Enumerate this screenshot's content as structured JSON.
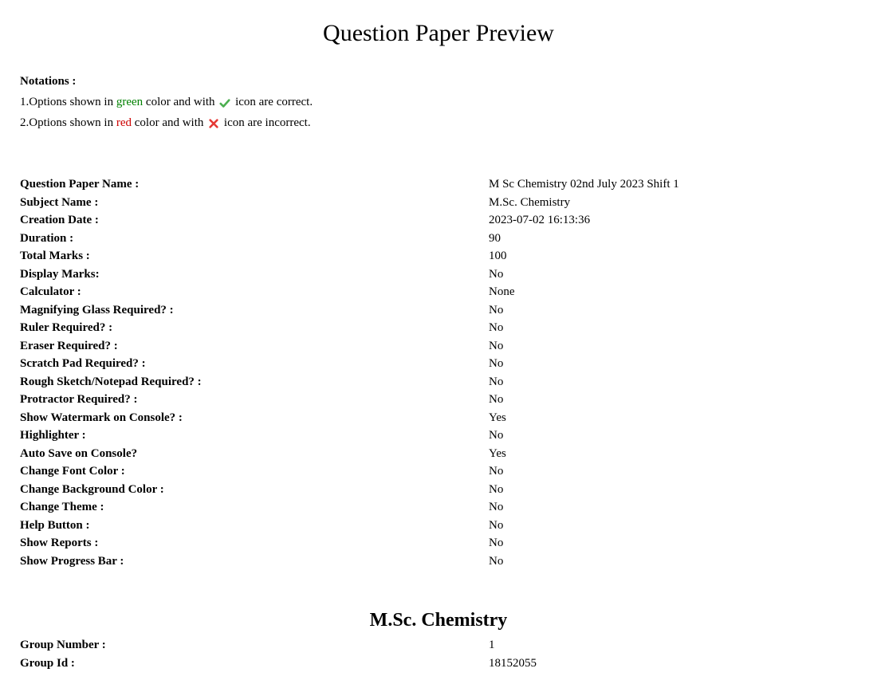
{
  "title": "Question Paper Preview",
  "notations": {
    "heading": "Notations :",
    "item1_prefix": "1.Options shown in ",
    "item1_green": "green",
    "item1_mid": " color and with ",
    "item1_suffix": " icon are correct.",
    "item2_prefix": "2.Options shown in ",
    "item2_red": "red",
    "item2_mid": " color and with ",
    "item2_suffix": " icon are incorrect."
  },
  "details": [
    {
      "label": "Question Paper Name :",
      "value": "M Sc Chemistry 02nd July 2023 Shift 1"
    },
    {
      "label": "Subject Name :",
      "value": "M.Sc. Chemistry"
    },
    {
      "label": "Creation Date :",
      "value": "2023-07-02 16:13:36"
    },
    {
      "label": "Duration :",
      "value": "90"
    },
    {
      "label": "Total Marks :",
      "value": "100"
    },
    {
      "label": "Display Marks:",
      "value": "No"
    },
    {
      "label": "Calculator :",
      "value": "None"
    },
    {
      "label": "Magnifying Glass Required? :",
      "value": "No"
    },
    {
      "label": "Ruler Required? :",
      "value": "No"
    },
    {
      "label": "Eraser Required? :",
      "value": "No"
    },
    {
      "label": "Scratch Pad Required? :",
      "value": "No"
    },
    {
      "label": "Rough Sketch/Notepad Required? :",
      "value": "No"
    },
    {
      "label": "Protractor Required? :",
      "value": "No"
    },
    {
      "label": "Show Watermark on Console? :",
      "value": "Yes"
    },
    {
      "label": "Highlighter :",
      "value": "No"
    },
    {
      "label": "Auto Save on Console?",
      "value": "Yes"
    },
    {
      "label": "Change Font Color :",
      "value": "No"
    },
    {
      "label": "Change Background Color :",
      "value": "No"
    },
    {
      "label": "Change Theme :",
      "value": "No"
    },
    {
      "label": "Help Button :",
      "value": "No"
    },
    {
      "label": "Show Reports :",
      "value": "No"
    },
    {
      "label": "Show Progress Bar :",
      "value": "No"
    }
  ],
  "section": {
    "heading": "M.Sc. Chemistry",
    "rows": [
      {
        "label": "Group Number :",
        "value": "1"
      },
      {
        "label": "Group Id :",
        "value": "18152055"
      }
    ]
  },
  "colors": {
    "green": "#008000",
    "red": "#cc0000",
    "check_icon": "#4caf50",
    "cross_icon": "#e53935",
    "background": "#ffffff",
    "text": "#000000"
  }
}
